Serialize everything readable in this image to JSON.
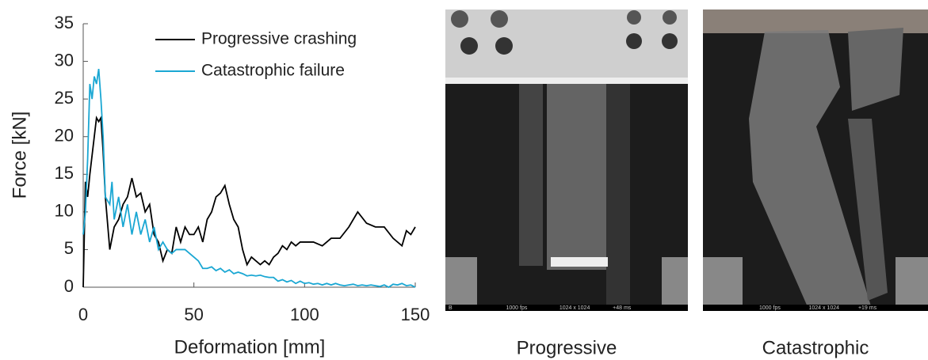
{
  "chart_data": {
    "type": "line",
    "xlabel": "Deformation [mm]",
    "ylabel": "Force [kN]",
    "xlim": [
      0,
      150
    ],
    "xticks": [
      0,
      50,
      100,
      150
    ],
    "ylim": [
      0,
      35
    ],
    "yticks": [
      0,
      5,
      10,
      15,
      20,
      25,
      30,
      35
    ],
    "grid": false,
    "legend": "upper right",
    "series": [
      {
        "name": "Progressive crashing",
        "color": "#000000",
        "x": [
          0,
          1,
          2,
          3,
          5,
          6,
          7,
          8,
          9,
          10,
          12,
          14,
          16,
          18,
          20,
          22,
          24,
          26,
          28,
          30,
          32,
          34,
          36,
          38,
          40,
          42,
          44,
          46,
          48,
          50,
          52,
          54,
          56,
          58,
          60,
          62,
          64,
          66,
          68,
          70,
          72,
          74,
          76,
          78,
          80,
          82,
          84,
          86,
          88,
          90,
          92,
          94,
          96,
          98,
          100,
          104,
          108,
          112,
          116,
          120,
          124,
          128,
          132,
          136,
          140,
          144,
          146,
          148,
          150
        ],
        "values": [
          0,
          14,
          12,
          15,
          20,
          22.5,
          22,
          22.5,
          18,
          12,
          5,
          8,
          9,
          11,
          12,
          14.5,
          12,
          12.5,
          10,
          11,
          7,
          6,
          3.5,
          5,
          4.5,
          8,
          6,
          8,
          7,
          7,
          8,
          6,
          9,
          10,
          12,
          12.5,
          13.5,
          11,
          9,
          8,
          5,
          3,
          4,
          3.5,
          3,
          3.5,
          3,
          4,
          4.5,
          5.5,
          5,
          6,
          5.5,
          6,
          6,
          6,
          5.5,
          6.5,
          6.5,
          8,
          10,
          8.5,
          8,
          8,
          6.5,
          5.5,
          7.5,
          7,
          8
        ]
      },
      {
        "name": "Catastrophic failure",
        "color": "#1aa7d3",
        "x": [
          0,
          1,
          2,
          3,
          4,
          5,
          6,
          7,
          8,
          9,
          10,
          12,
          13,
          14,
          16,
          18,
          20,
          22,
          24,
          26,
          28,
          30,
          32,
          34,
          36,
          38,
          40,
          42,
          44,
          46,
          48,
          50,
          52,
          54,
          56,
          58,
          60,
          62,
          64,
          66,
          68,
          70,
          72,
          74,
          76,
          78,
          80,
          82,
          84,
          86,
          88,
          90,
          92,
          94,
          96,
          98,
          100,
          102,
          104,
          106,
          108,
          110,
          112,
          114,
          116,
          118,
          120,
          122,
          124,
          126,
          128,
          130,
          132,
          134,
          136,
          138,
          140,
          142,
          144,
          146,
          148,
          150
        ],
        "values": [
          7,
          10,
          17,
          27,
          25,
          28,
          27,
          29,
          25,
          20,
          12,
          11,
          14,
          9,
          12,
          8,
          11,
          7,
          10,
          7,
          9,
          6,
          8,
          5,
          6,
          5,
          4.5,
          5,
          5,
          5,
          4.5,
          4,
          3.5,
          2.5,
          2.5,
          2.7,
          2.2,
          2.5,
          2,
          2.3,
          1.8,
          2,
          1.8,
          1.5,
          1.6,
          1.5,
          1.6,
          1.4,
          1.3,
          1.3,
          0.8,
          1,
          0.7,
          0.9,
          0.5,
          0.8,
          0.5,
          0.6,
          0.4,
          0.5,
          0.3,
          0.5,
          0.3,
          0.5,
          0.3,
          0.2,
          0.3,
          0.4,
          0.2,
          0.3,
          0.2,
          0.3,
          0.2,
          0.1,
          0.3,
          0,
          0.4,
          0.3,
          0.5,
          0.2,
          0.3,
          0
        ]
      }
    ]
  },
  "photos": [
    {
      "caption": "Progressive",
      "stamp": [
        "B",
        "1000 fps",
        "1024 x 1024",
        "+48 ms"
      ]
    },
    {
      "caption": "Catastrophic",
      "stamp": [
        "1000 fps",
        "1024 x 1024",
        "+19 ms"
      ]
    }
  ]
}
